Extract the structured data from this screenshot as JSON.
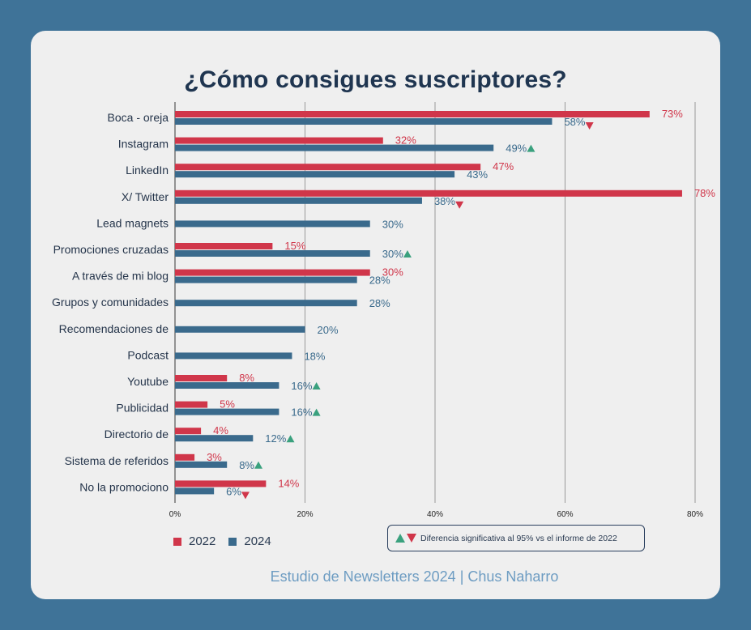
{
  "chart_data": {
    "type": "bar",
    "orientation": "horizontal",
    "title": "¿Cómo consigues suscriptores?",
    "categories": [
      "Boca - oreja",
      "Instagram",
      "LinkedIn",
      "X/ Twitter",
      "Lead magnets",
      "Promociones cruzadas",
      "A través de mi blog",
      "Grupos y comunidades",
      "Recomendaciones de",
      "Podcast",
      "Youtube",
      "Publicidad",
      "Directorio de",
      "Sistema de referidos",
      "No la promociono"
    ],
    "series": [
      {
        "name": "2022",
        "color": "#d0364a",
        "values": [
          73,
          32,
          47,
          78,
          null,
          15,
          30,
          null,
          null,
          null,
          8,
          5,
          4,
          3,
          14
        ],
        "labels": [
          "73%",
          "32%",
          "47%",
          "78%",
          "",
          "15%",
          "30%",
          "",
          "",
          "",
          "8%",
          "5%",
          "4%",
          "3%",
          "14%"
        ]
      },
      {
        "name": "2024",
        "color": "#3a6a8c",
        "values": [
          58,
          49,
          43,
          38,
          30,
          30,
          28,
          28,
          20,
          18,
          16,
          16,
          12,
          8,
          6
        ],
        "labels": [
          "58%",
          "49%",
          "43%",
          "38%",
          "30%",
          "30%",
          "28%",
          "28%",
          "20%",
          "18%",
          "16%",
          "16%",
          "12%",
          "8%",
          "6%"
        ]
      }
    ],
    "significance": [
      "down",
      "up",
      "",
      "down",
      "",
      "up",
      "",
      "",
      "",
      "",
      "up",
      "up",
      "up",
      "up",
      "down"
    ],
    "xlim": [
      0,
      80
    ],
    "xticks": [
      "0%",
      "20%",
      "40%",
      "60%",
      "80%"
    ],
    "grid": true,
    "legend_position": "bottom-left",
    "significance_colors": {
      "up": "#3aa17e",
      "down": "#d0364a"
    }
  },
  "legend": {
    "item_2022": "2022",
    "item_2024": "2024"
  },
  "note": "Diferencia significativa al 95% vs el informe de 2022",
  "footer": "Estudio de Newsletters 2024  |  Chus Naharro"
}
